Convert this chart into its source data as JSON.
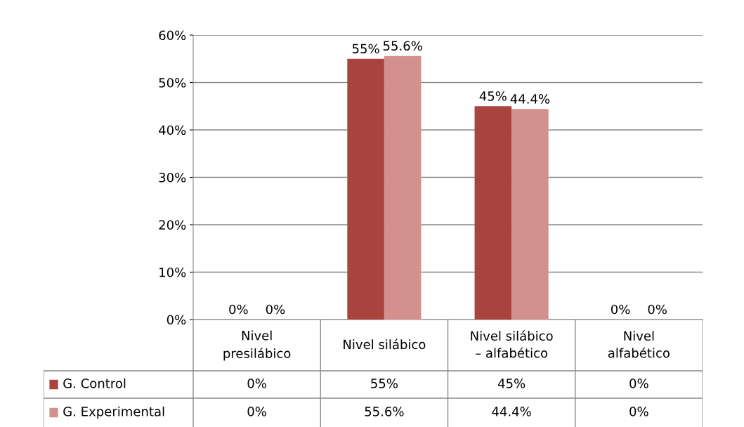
{
  "chart_data": {
    "type": "bar",
    "categories": [
      "Nivel\npresilábico",
      "Nivel silábico",
      "Nivel silábico\n– alfabético",
      "Nivel\nalfabético"
    ],
    "series": [
      {
        "name": "G. Control",
        "color": "#a8433e",
        "values": [
          0,
          55,
          45,
          0
        ],
        "value_labels": [
          "0%",
          "55%",
          "45%",
          "0%"
        ]
      },
      {
        "name": "G. Experimental",
        "color": "#d4908e",
        "values": [
          0,
          55.6,
          44.4,
          0
        ],
        "value_labels": [
          "0%",
          "55.6%",
          "44.4%",
          "0%"
        ]
      }
    ],
    "ylim": [
      0,
      60
    ],
    "yticks": [
      {
        "value": 0,
        "label": "0%"
      },
      {
        "value": 10,
        "label": "10%"
      },
      {
        "value": 20,
        "label": "20%"
      },
      {
        "value": 30,
        "label": "30%"
      },
      {
        "value": 40,
        "label": "40%"
      },
      {
        "value": 50,
        "label": "50%"
      },
      {
        "value": 60,
        "label": "60%"
      }
    ],
    "grid": "y",
    "legend": "bottom"
  }
}
